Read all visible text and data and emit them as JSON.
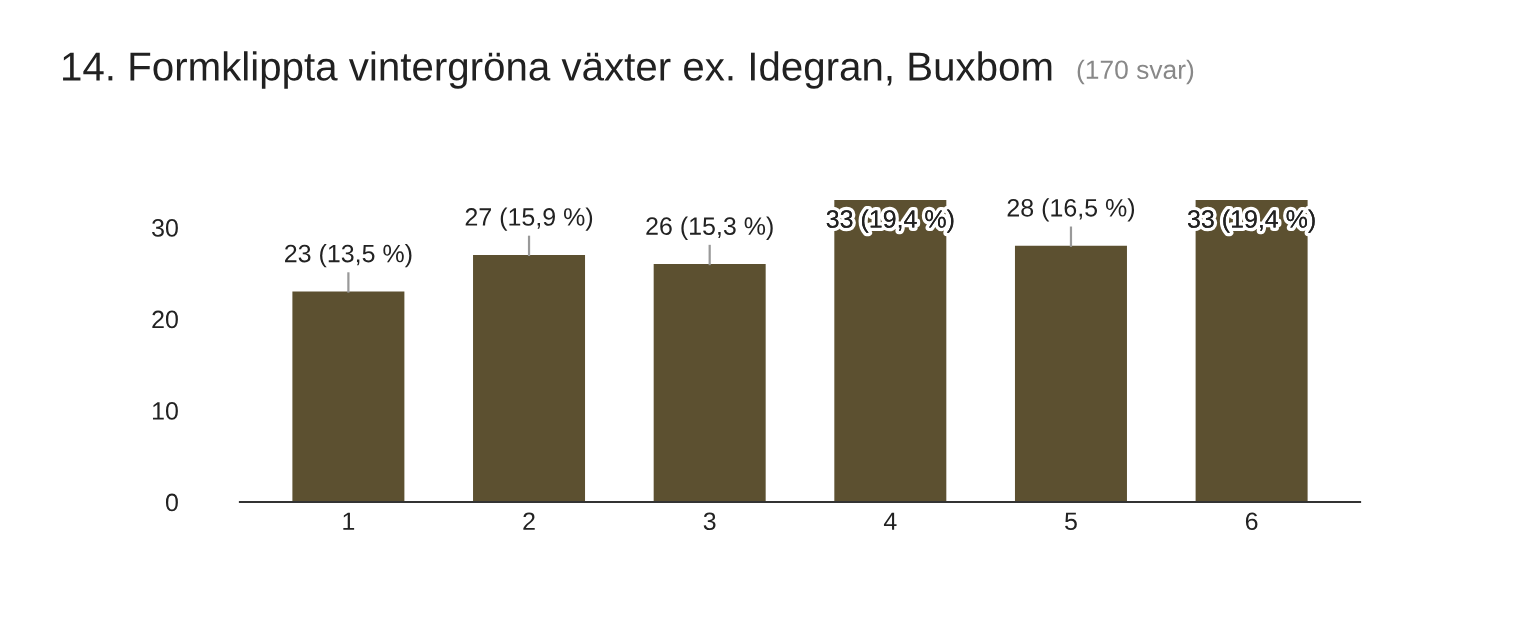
{
  "chart_data": {
    "type": "bar",
    "title": "14. Formklippta vintergröna växter ex. Idegran, Buxbom",
    "subtitle": "(170 svar)",
    "categories": [
      "1",
      "2",
      "3",
      "4",
      "5",
      "6"
    ],
    "values": [
      23,
      27,
      26,
      33,
      28,
      33
    ],
    "value_labels": [
      "23 (13,5 %)",
      "27 (15,9 %)",
      "26 (15,3 %)",
      "33 (19,4 %)",
      "28 (16,5 %)",
      "33 (19,4 %)"
    ],
    "color": "#5c5030",
    "ylim": [
      0,
      33
    ],
    "yticks": [
      0,
      10,
      20,
      30
    ],
    "grid": false,
    "legend": false
  }
}
